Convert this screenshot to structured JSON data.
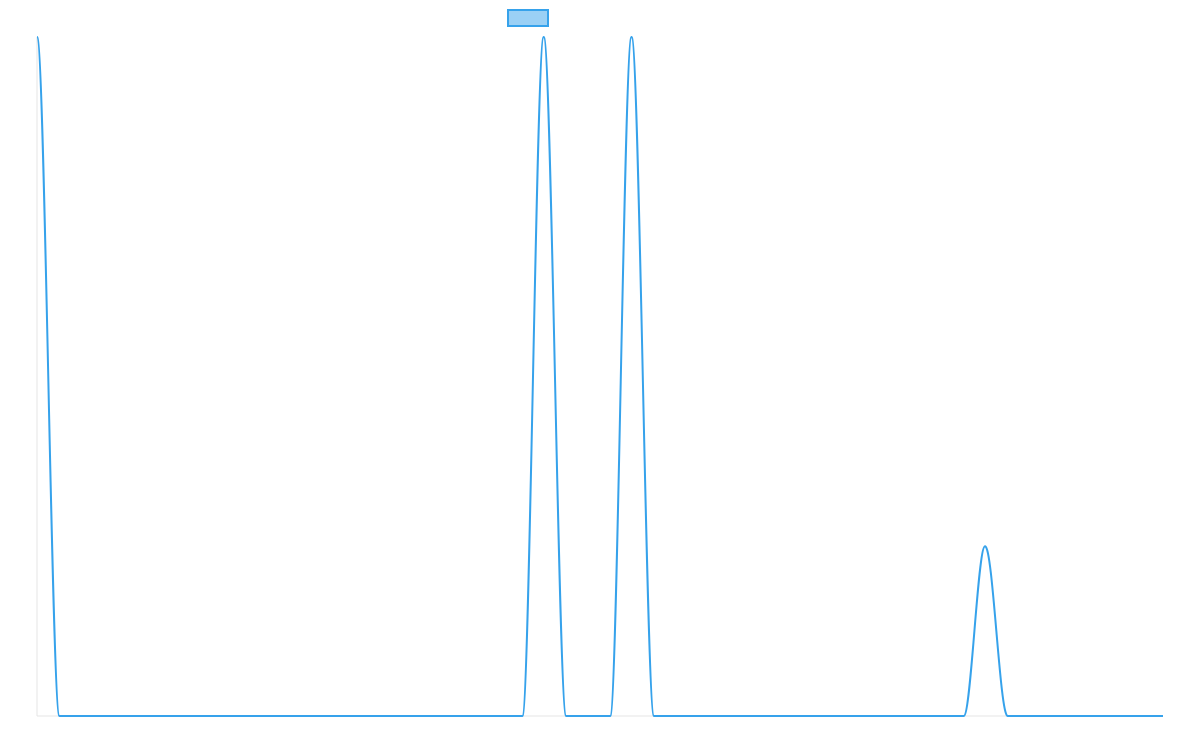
{
  "chart_data": {
    "type": "line",
    "title": "",
    "xlabel": "",
    "ylabel": "",
    "grid": false,
    "legend": {
      "placement": "top-center",
      "entries": [
        {
          "label": "",
          "color": "#36a2eb",
          "fill": "#9ad0f5"
        }
      ]
    },
    "xlim": [
      0,
      1000
    ],
    "ylim": [
      0,
      1
    ],
    "series": [
      {
        "color": "#36a2eb",
        "points": [
          {
            "x": 0,
            "y": 1.0
          },
          {
            "x": 20,
            "y": 0.0
          },
          {
            "x": 431,
            "y": 0.0
          },
          {
            "x": 450,
            "y": 1.0
          },
          {
            "x": 470,
            "y": 0.0
          },
          {
            "x": 509,
            "y": 0.0
          },
          {
            "x": 528,
            "y": 1.0
          },
          {
            "x": 548,
            "y": 0.0
          },
          {
            "x": 823,
            "y": 0.0
          },
          {
            "x": 842,
            "y": 0.25
          },
          {
            "x": 862,
            "y": 0.0
          },
          {
            "x": 1000,
            "y": 0.0
          }
        ]
      }
    ]
  }
}
